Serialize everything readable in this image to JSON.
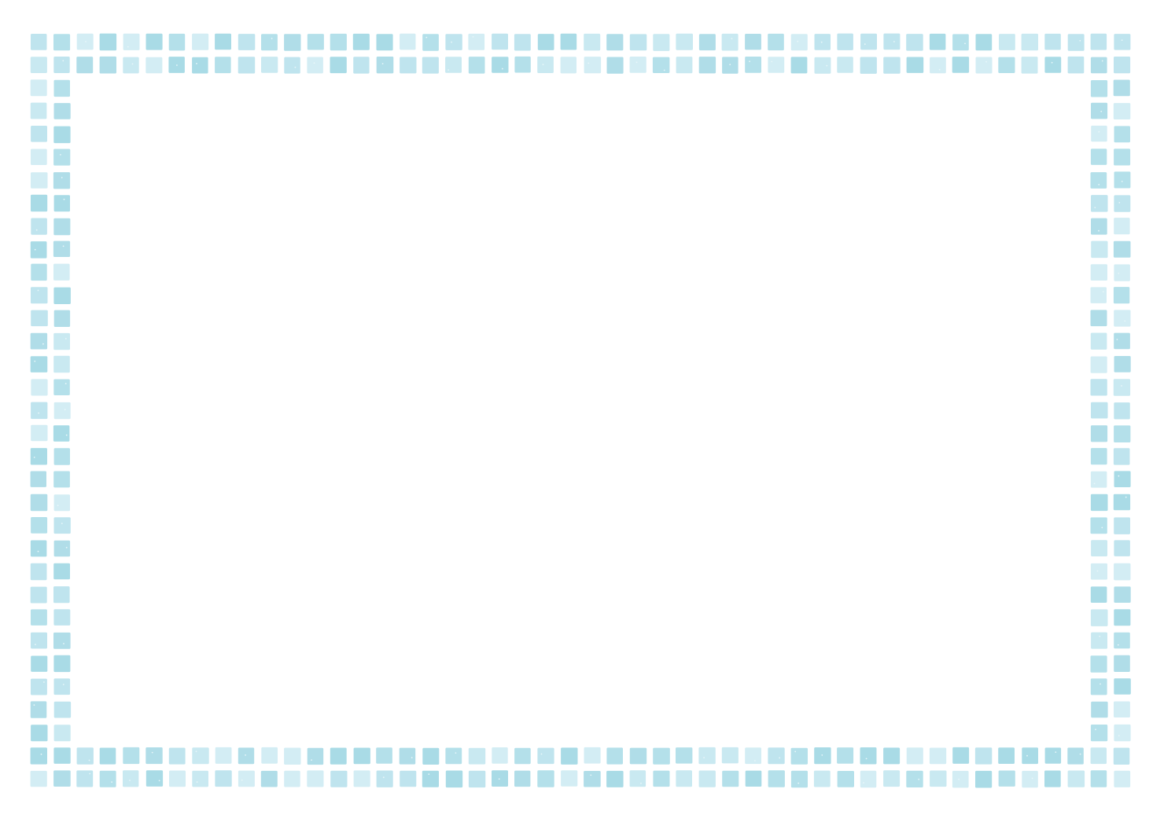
{
  "frame": {
    "style": "mosaic-tile-border",
    "tile_colors": [
      "#a9dbe6",
      "#b4e0ea",
      "#bfe4ee",
      "#c9e9f1",
      "#d3edf4",
      "#b0dde8"
    ],
    "background_color": "#ffffff"
  }
}
